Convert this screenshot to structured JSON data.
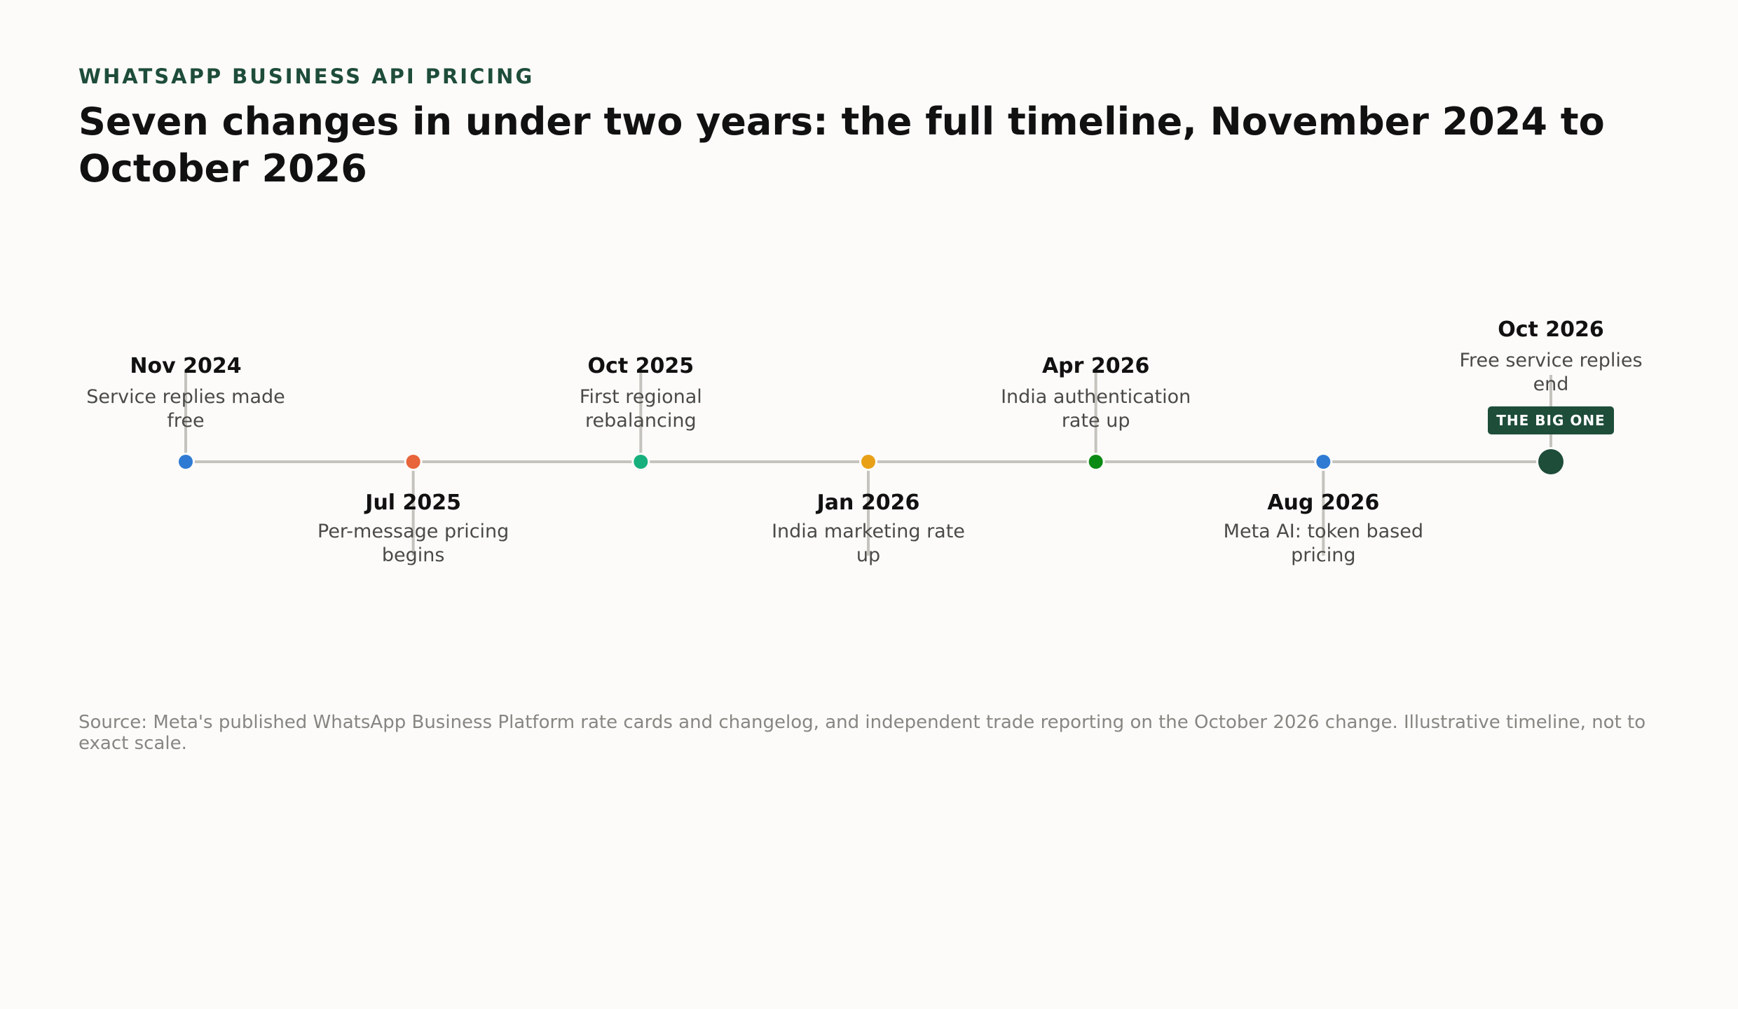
{
  "header": {
    "eyebrow": "WHATSAPP BUSINESS API PRICING",
    "title": "Seven changes in under two years: the full timeline, November 2024 to October 2026"
  },
  "timeline": {
    "events": [
      {
        "date": "Nov 2024",
        "desc": [
          "Service replies made",
          "free"
        ],
        "side": "above",
        "color": "#2f7bd4"
      },
      {
        "date": "Jul 2025",
        "desc": [
          "Per-message pricing",
          "begins"
        ],
        "side": "below",
        "color": "#e8643a"
      },
      {
        "date": "Oct 2025",
        "desc": [
          "First regional",
          "rebalancing"
        ],
        "side": "above",
        "color": "#17b07c"
      },
      {
        "date": "Jan 2026",
        "desc": [
          "India marketing rate",
          "up"
        ],
        "side": "below",
        "color": "#e8a117"
      },
      {
        "date": "Apr 2026",
        "desc": [
          "India authentication",
          "rate up"
        ],
        "side": "above",
        "color": "#0b8a14"
      },
      {
        "date": "Aug 2026",
        "desc": [
          "Meta AI: token based",
          "pricing"
        ],
        "side": "below",
        "color": "#2f7bd4"
      },
      {
        "date": "Oct 2026",
        "desc": [
          "Free service replies",
          "end"
        ],
        "side": "above",
        "color": "#1e4d3a",
        "highlight": true,
        "badge": "THE BIG ONE"
      }
    ],
    "line_color": "#c5c3bd"
  },
  "footer": {
    "source": "Source: Meta's published WhatsApp Business Platform rate cards and changelog, and independent trade reporting on the October 2026 change. Illustrative timeline, not to exact scale."
  }
}
